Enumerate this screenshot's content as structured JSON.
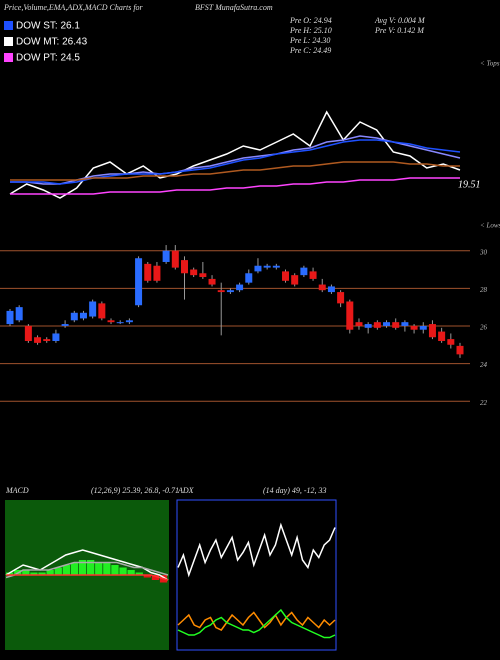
{
  "header": {
    "title": "Price,Volume,EMA,ADX,MACD Charts for",
    "site": "BFST MunafaSutra.com",
    "pre_open": "Pre  O: 24.94",
    "pre_high": "Pre  H: 25.10",
    "pre_low": "Pre  L: 24.30",
    "pre_close": "Pre  C: 24.49",
    "avg_volume": "Avg V: 0.004  M",
    "pre_volume": "Pre  V: 0.142  M"
  },
  "legend": [
    {
      "label": "DOW ST: 26.1",
      "color": "#1e50ff"
    },
    {
      "label": "DOW MT: 26.43",
      "color": "#ffffff"
    },
    {
      "label": "DOW PT: 24.5",
      "color": "#ff44ff"
    }
  ],
  "chart_data": [
    {
      "type": "line",
      "label": "< Tops",
      "annotation": "19.51",
      "ylim": [
        25,
        33
      ],
      "series": [
        {
          "color": "#ffffff",
          "values": [
            26.3,
            26.8,
            26.5,
            26.1,
            26.6,
            27.6,
            27.9,
            27.3,
            27.7,
            27.1,
            27.3,
            27.7,
            28.0,
            28.3,
            28.7,
            28.5,
            28.9,
            29.3,
            28.7,
            30.4,
            29.0,
            29.9,
            29.5,
            28.4,
            28.2,
            27.6,
            27.8,
            27.5
          ]
        },
        {
          "color": "#8888ff",
          "values": [
            26.9,
            26.9,
            26.8,
            26.8,
            27.0,
            27.2,
            27.3,
            27.3,
            27.4,
            27.3,
            27.4,
            27.6,
            27.7,
            27.9,
            28.1,
            28.2,
            28.3,
            28.5,
            28.6,
            28.9,
            29.0,
            29.2,
            29.1,
            28.9,
            28.7,
            28.5,
            28.3,
            28.1
          ]
        },
        {
          "color": "#1e50ff",
          "values": [
            26.9,
            26.9,
            26.9,
            26.8,
            26.9,
            27.1,
            27.2,
            27.3,
            27.3,
            27.3,
            27.4,
            27.5,
            27.6,
            27.8,
            28.0,
            28.1,
            28.3,
            28.4,
            28.5,
            28.7,
            28.9,
            29.0,
            29.0,
            28.9,
            28.8,
            28.6,
            28.5,
            28.4
          ]
        },
        {
          "color": "#b05a20",
          "values": [
            27.0,
            27.0,
            27.0,
            27.0,
            27.0,
            27.1,
            27.1,
            27.1,
            27.2,
            27.2,
            27.2,
            27.3,
            27.3,
            27.4,
            27.5,
            27.5,
            27.6,
            27.7,
            27.7,
            27.8,
            27.9,
            27.9,
            27.9,
            27.9,
            27.8,
            27.8,
            27.7,
            27.7
          ]
        },
        {
          "color": "#ff44ff",
          "values": [
            26.3,
            26.3,
            26.3,
            26.3,
            26.3,
            26.3,
            26.4,
            26.4,
            26.4,
            26.4,
            26.5,
            26.5,
            26.5,
            26.6,
            26.6,
            26.7,
            26.7,
            26.8,
            26.8,
            26.9,
            26.9,
            27.0,
            27.0,
            27.0,
            27.1,
            27.1,
            27.1,
            27.1
          ]
        }
      ]
    },
    {
      "type": "candlestick",
      "label": "< Lows",
      "ylim": [
        21,
        31.1
      ],
      "yticks": [
        30,
        28,
        26,
        24,
        22
      ],
      "grid_color": "#a0522d",
      "up_color": "#2a6cff",
      "down_color": "#e81818",
      "open": [
        26.1,
        26.3,
        26.0,
        25.4,
        25.3,
        25.2,
        26.0,
        26.3,
        26.4,
        26.5,
        27.2,
        26.3,
        26.2,
        26.2,
        27.1,
        29.3,
        29.2,
        29.4,
        30.0,
        29.5,
        29.0,
        28.8,
        28.5,
        27.9,
        27.8,
        27.9,
        28.3,
        28.9,
        29.1,
        29.1,
        28.9,
        28.7,
        28.7,
        28.9,
        28.2,
        27.8,
        27.8,
        27.3,
        26.2,
        25.9,
        26.2,
        26.0,
        26.2,
        26.0,
        26.0,
        25.8,
        26.1,
        25.7,
        25.3,
        24.94
      ],
      "high": [
        26.9,
        27.1,
        26.1,
        25.5,
        25.4,
        25.8,
        26.3,
        26.8,
        26.8,
        27.4,
        27.3,
        26.4,
        26.3,
        26.4,
        29.7,
        29.4,
        29.4,
        30.3,
        30.3,
        29.7,
        29.1,
        29.4,
        28.7,
        28.3,
        28.0,
        28.3,
        29.0,
        29.6,
        29.3,
        29.3,
        29.0,
        28.8,
        29.2,
        29.1,
        28.5,
        28.2,
        27.9,
        27.4,
        26.4,
        26.2,
        26.3,
        26.3,
        26.4,
        26.3,
        26.1,
        26.2,
        26.3,
        25.9,
        25.6,
        25.1
      ],
      "low": [
        26.0,
        26.2,
        25.1,
        25.0,
        25.1,
        25.1,
        25.9,
        26.2,
        26.3,
        26.4,
        26.3,
        26.1,
        26.1,
        26.1,
        27.0,
        28.3,
        28.3,
        29.3,
        29.0,
        27.4,
        28.6,
        28.5,
        28.1,
        25.5,
        27.7,
        27.8,
        28.2,
        28.8,
        29.0,
        29.0,
        28.3,
        28.1,
        28.6,
        28.4,
        27.8,
        27.7,
        27.0,
        25.6,
        25.8,
        25.6,
        25.8,
        25.9,
        25.8,
        25.7,
        25.6,
        25.6,
        25.3,
        25.1,
        24.8,
        24.3
      ],
      "close": [
        26.8,
        27.0,
        25.2,
        25.1,
        25.2,
        25.6,
        26.1,
        26.7,
        26.7,
        27.3,
        26.4,
        26.2,
        26.2,
        26.3,
        29.6,
        28.4,
        28.4,
        30.0,
        29.1,
        28.8,
        28.7,
        28.6,
        28.2,
        27.8,
        27.9,
        28.2,
        28.8,
        29.2,
        29.2,
        29.2,
        28.4,
        28.2,
        29.1,
        28.5,
        27.9,
        28.1,
        27.2,
        25.8,
        26.0,
        26.1,
        25.9,
        26.2,
        25.9,
        26.2,
        25.8,
        26.0,
        25.4,
        25.2,
        25.0,
        24.49
      ]
    },
    {
      "type": "line",
      "title": "MACD",
      "subtitle": "(12,26,9) 25.39, 26.8, -0.71",
      "ylim": [
        -3,
        3
      ],
      "background": "#0b5a0b",
      "bars": [
        0.1,
        0.2,
        0.2,
        0.1,
        0.1,
        0.2,
        0.3,
        0.4,
        0.5,
        0.6,
        0.6,
        0.5,
        0.5,
        0.4,
        0.3,
        0.2,
        0.1,
        -0.1,
        -0.2,
        -0.3
      ],
      "bar_color": "#22ee22",
      "bar_negative_color": "#e81818",
      "series": [
        {
          "color": "#ffffff",
          "values": [
            0.0,
            0.2,
            0.4,
            0.3,
            0.2,
            0.4,
            0.6,
            0.8,
            0.9,
            1.0,
            0.9,
            0.8,
            0.7,
            0.6,
            0.5,
            0.4,
            0.3,
            0.1,
            0.0,
            -0.2
          ]
        },
        {
          "color": "#aaaaaa",
          "values": [
            -0.1,
            0.0,
            0.2,
            0.2,
            0.2,
            0.2,
            0.3,
            0.4,
            0.5,
            0.5,
            0.5,
            0.5,
            0.5,
            0.5,
            0.4,
            0.3,
            0.3,
            0.2,
            0.1,
            0.0
          ]
        },
        {
          "color": "#ff3030",
          "values": [
            0.0,
            0.0,
            0.0,
            0.0,
            0.0,
            0.0,
            0.0,
            0.0,
            0.0,
            0.0,
            0.0,
            0.0,
            0.0,
            0.0,
            0.0,
            0.0,
            0.0,
            0.0,
            -0.1,
            -0.2
          ]
        }
      ]
    },
    {
      "type": "line",
      "title": "ADX",
      "subtitle": "(14 day) 49, -12, 33",
      "ylim": [
        0,
        60
      ],
      "background": "#000000",
      "border": "#3050ff",
      "series": [
        {
          "color": "#ffffff",
          "values": [
            33,
            38,
            30,
            36,
            42,
            35,
            40,
            44,
            37,
            41,
            45,
            36,
            39,
            43,
            34,
            40,
            46,
            38,
            42,
            50,
            44,
            38,
            45,
            36,
            33,
            40,
            37,
            42,
            44,
            49
          ]
        },
        {
          "color": "#ff8c00",
          "values": [
            10,
            12,
            14,
            10,
            9,
            12,
            13,
            9,
            8,
            11,
            14,
            12,
            10,
            13,
            15,
            12,
            9,
            11,
            14,
            10,
            13,
            15,
            12,
            10,
            13,
            11,
            9,
            12,
            10,
            12
          ]
        },
        {
          "color": "#22ff22",
          "values": [
            8,
            7,
            6,
            6,
            7,
            9,
            10,
            12,
            13,
            11,
            10,
            9,
            8,
            8,
            7,
            8,
            10,
            12,
            14,
            16,
            13,
            11,
            10,
            9,
            8,
            7,
            6,
            5,
            5,
            6
          ]
        }
      ]
    }
  ]
}
